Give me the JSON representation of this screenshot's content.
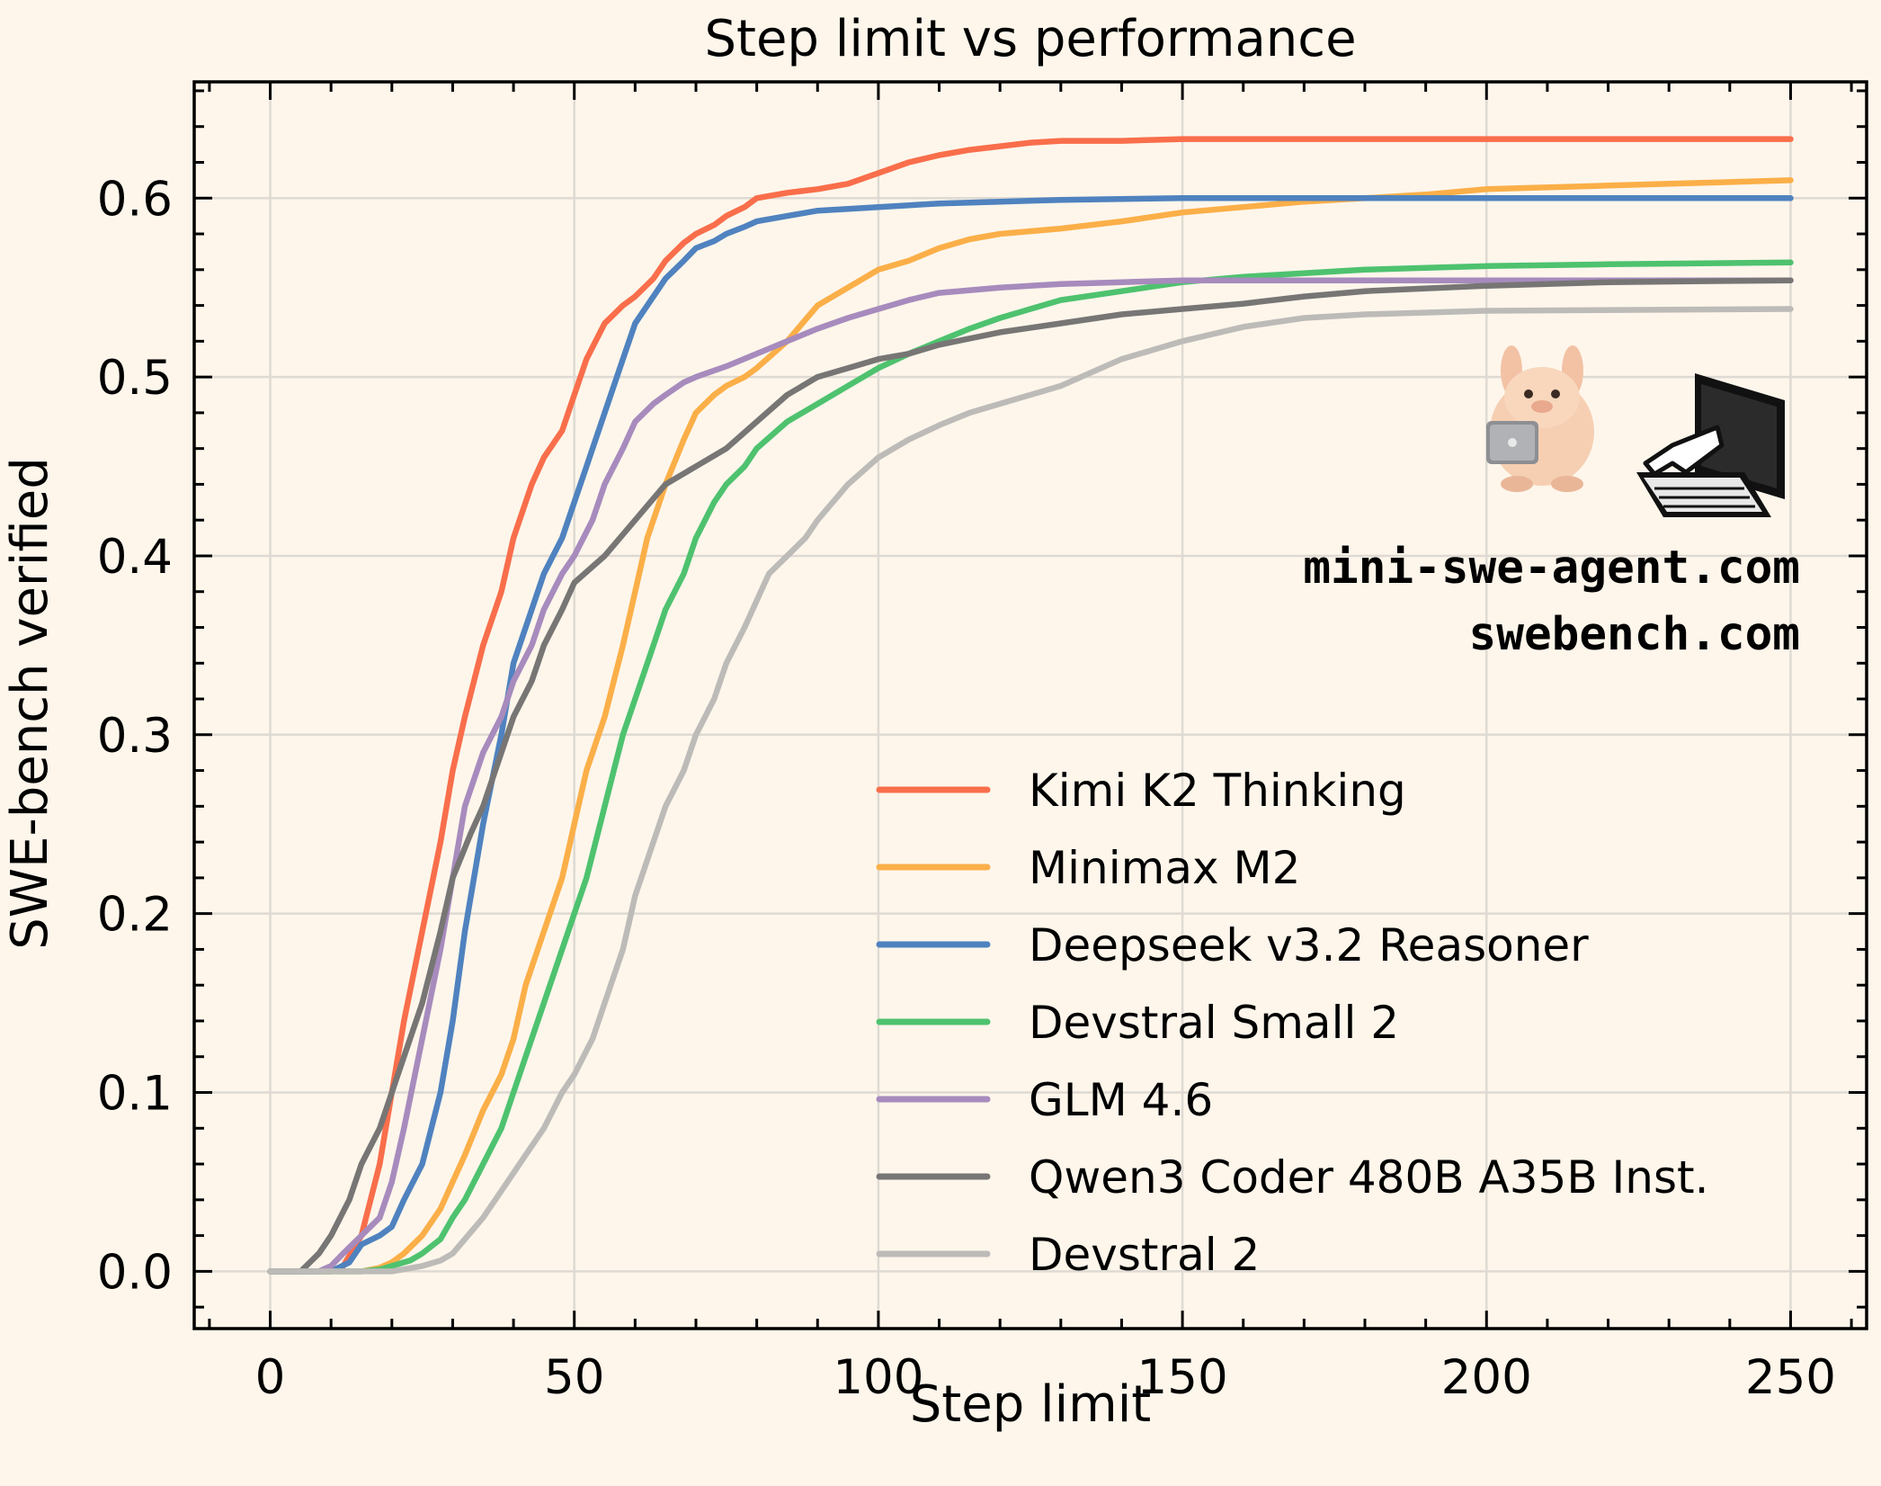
{
  "chart_data": {
    "type": "line",
    "title": "Step limit vs performance",
    "xlabel": "Step limit",
    "ylabel": "SWE-bench verified",
    "xlim": [
      -12.5,
      262.5
    ],
    "ylim": [
      -0.032,
      0.665
    ],
    "xticks": [
      0,
      50,
      100,
      150,
      200,
      250
    ],
    "yticks": [
      0.0,
      0.1,
      0.2,
      0.3,
      0.4,
      0.5,
      0.6
    ],
    "ytick_format": "0.0",
    "grid": true,
    "legend_position": "lower-right",
    "watermark": {
      "lines": [
        "mini-swe-agent.com",
        "swebench.com"
      ],
      "icons": [
        "llama-with-laptop-icon",
        "hand-typing-on-computer-icon"
      ]
    },
    "series": [
      {
        "name": "Kimi K2 Thinking",
        "color": "#f96e4b",
        "x": [
          0,
          10,
          12,
          15,
          18,
          20,
          22,
          25,
          28,
          30,
          32,
          35,
          38,
          40,
          43,
          45,
          48,
          50,
          52,
          55,
          58,
          60,
          63,
          65,
          68,
          70,
          73,
          75,
          78,
          80,
          85,
          90,
          95,
          100,
          105,
          110,
          115,
          120,
          125,
          130,
          140,
          150,
          160,
          180,
          200,
          220,
          250
        ],
        "y": [
          0,
          0,
          0.003,
          0.02,
          0.06,
          0.1,
          0.14,
          0.19,
          0.24,
          0.28,
          0.31,
          0.35,
          0.38,
          0.41,
          0.44,
          0.455,
          0.47,
          0.49,
          0.51,
          0.53,
          0.54,
          0.545,
          0.555,
          0.565,
          0.575,
          0.58,
          0.585,
          0.59,
          0.595,
          0.6,
          0.603,
          0.605,
          0.608,
          0.614,
          0.62,
          0.624,
          0.627,
          0.629,
          0.631,
          0.632,
          0.632,
          0.633,
          0.633,
          0.633,
          0.633,
          0.633,
          0.633
        ]
      },
      {
        "name": "Minimax M2",
        "color": "#fbaf48",
        "x": [
          0,
          15,
          18,
          20,
          22,
          25,
          28,
          30,
          32,
          35,
          38,
          40,
          42,
          45,
          48,
          50,
          52,
          55,
          58,
          60,
          62,
          65,
          68,
          70,
          73,
          75,
          78,
          80,
          85,
          90,
          95,
          100,
          105,
          110,
          115,
          120,
          130,
          140,
          150,
          160,
          170,
          180,
          190,
          200,
          220,
          240,
          250
        ],
        "y": [
          0,
          0,
          0.002,
          0.005,
          0.01,
          0.02,
          0.035,
          0.05,
          0.065,
          0.09,
          0.11,
          0.13,
          0.16,
          0.19,
          0.22,
          0.25,
          0.28,
          0.31,
          0.35,
          0.38,
          0.41,
          0.44,
          0.465,
          0.48,
          0.49,
          0.495,
          0.5,
          0.505,
          0.52,
          0.54,
          0.55,
          0.56,
          0.565,
          0.572,
          0.577,
          0.58,
          0.583,
          0.587,
          0.592,
          0.595,
          0.598,
          0.6,
          0.602,
          0.605,
          0.607,
          0.609,
          0.61
        ]
      },
      {
        "name": "Deepseek v3.2 Reasoner",
        "color": "#4f82bf",
        "x": [
          0,
          10,
          13,
          15,
          18,
          20,
          22,
          25,
          28,
          30,
          32,
          35,
          38,
          40,
          43,
          45,
          48,
          50,
          52,
          55,
          58,
          60,
          63,
          65,
          68,
          70,
          73,
          75,
          78,
          80,
          85,
          90,
          100,
          110,
          120,
          130,
          150,
          200,
          250
        ],
        "y": [
          0,
          0,
          0.005,
          0.015,
          0.02,
          0.025,
          0.04,
          0.06,
          0.1,
          0.14,
          0.19,
          0.25,
          0.3,
          0.34,
          0.37,
          0.39,
          0.41,
          0.43,
          0.45,
          0.48,
          0.51,
          0.53,
          0.545,
          0.555,
          0.565,
          0.572,
          0.576,
          0.58,
          0.584,
          0.587,
          0.59,
          0.593,
          0.595,
          0.597,
          0.598,
          0.599,
          0.6,
          0.6,
          0.6
        ]
      },
      {
        "name": "Devstral Small 2",
        "color": "#4ec26f",
        "x": [
          0,
          15,
          18,
          20,
          23,
          25,
          28,
          30,
          32,
          35,
          38,
          40,
          42,
          45,
          48,
          50,
          52,
          55,
          58,
          60,
          63,
          65,
          68,
          70,
          73,
          75,
          78,
          80,
          85,
          90,
          95,
          100,
          105,
          110,
          115,
          120,
          125,
          130,
          140,
          150,
          160,
          170,
          180,
          190,
          200,
          220,
          250
        ],
        "y": [
          0,
          0,
          0.001,
          0.003,
          0.006,
          0.01,
          0.018,
          0.03,
          0.04,
          0.06,
          0.08,
          0.1,
          0.12,
          0.15,
          0.18,
          0.2,
          0.22,
          0.26,
          0.3,
          0.32,
          0.35,
          0.37,
          0.39,
          0.41,
          0.43,
          0.44,
          0.45,
          0.46,
          0.475,
          0.485,
          0.495,
          0.505,
          0.513,
          0.52,
          0.527,
          0.533,
          0.538,
          0.543,
          0.548,
          0.553,
          0.556,
          0.558,
          0.56,
          0.561,
          0.562,
          0.563,
          0.564
        ]
      },
      {
        "name": "GLM 4.6",
        "color": "#a78bbd",
        "x": [
          0,
          8,
          10,
          12,
          15,
          18,
          20,
          22,
          25,
          28,
          30,
          32,
          35,
          38,
          40,
          43,
          45,
          48,
          50,
          53,
          55,
          58,
          60,
          63,
          65,
          68,
          70,
          75,
          80,
          85,
          90,
          95,
          100,
          105,
          110,
          120,
          130,
          140,
          150,
          200,
          250
        ],
        "y": [
          0,
          0,
          0.003,
          0.01,
          0.02,
          0.03,
          0.05,
          0.08,
          0.13,
          0.18,
          0.22,
          0.26,
          0.29,
          0.31,
          0.33,
          0.35,
          0.37,
          0.39,
          0.4,
          0.42,
          0.44,
          0.46,
          0.475,
          0.485,
          0.49,
          0.497,
          0.5,
          0.506,
          0.513,
          0.52,
          0.527,
          0.533,
          0.538,
          0.543,
          0.547,
          0.55,
          0.552,
          0.553,
          0.554,
          0.554,
          0.554
        ]
      },
      {
        "name": "Qwen3 Coder 480B A35B Inst.",
        "color": "#777675",
        "x": [
          0,
          5,
          8,
          10,
          13,
          15,
          18,
          20,
          22,
          25,
          28,
          30,
          33,
          35,
          38,
          40,
          43,
          45,
          48,
          50,
          55,
          60,
          65,
          70,
          75,
          80,
          85,
          90,
          95,
          100,
          105,
          110,
          120,
          130,
          140,
          150,
          160,
          170,
          180,
          200,
          220,
          250
        ],
        "y": [
          0,
          0,
          0.01,
          0.02,
          0.04,
          0.06,
          0.08,
          0.1,
          0.12,
          0.15,
          0.19,
          0.22,
          0.245,
          0.26,
          0.29,
          0.31,
          0.33,
          0.35,
          0.37,
          0.385,
          0.4,
          0.42,
          0.44,
          0.45,
          0.46,
          0.475,
          0.49,
          0.5,
          0.505,
          0.51,
          0.513,
          0.518,
          0.525,
          0.53,
          0.535,
          0.538,
          0.541,
          0.545,
          0.548,
          0.551,
          0.553,
          0.554
        ]
      },
      {
        "name": "Devstral 2",
        "color": "#bdbbb8",
        "x": [
          0,
          20,
          25,
          28,
          30,
          32,
          35,
          38,
          40,
          42,
          45,
          48,
          50,
          53,
          55,
          58,
          60,
          62,
          65,
          68,
          70,
          73,
          75,
          78,
          80,
          82,
          85,
          88,
          90,
          95,
          100,
          105,
          110,
          115,
          120,
          130,
          140,
          150,
          160,
          170,
          180,
          200,
          250
        ],
        "y": [
          0,
          0,
          0.003,
          0.006,
          0.01,
          0.018,
          0.03,
          0.045,
          0.055,
          0.065,
          0.08,
          0.1,
          0.11,
          0.13,
          0.15,
          0.18,
          0.21,
          0.23,
          0.26,
          0.28,
          0.3,
          0.32,
          0.34,
          0.36,
          0.375,
          0.39,
          0.4,
          0.41,
          0.42,
          0.44,
          0.455,
          0.465,
          0.473,
          0.48,
          0.485,
          0.495,
          0.51,
          0.52,
          0.528,
          0.533,
          0.535,
          0.537,
          0.538
        ]
      }
    ]
  }
}
